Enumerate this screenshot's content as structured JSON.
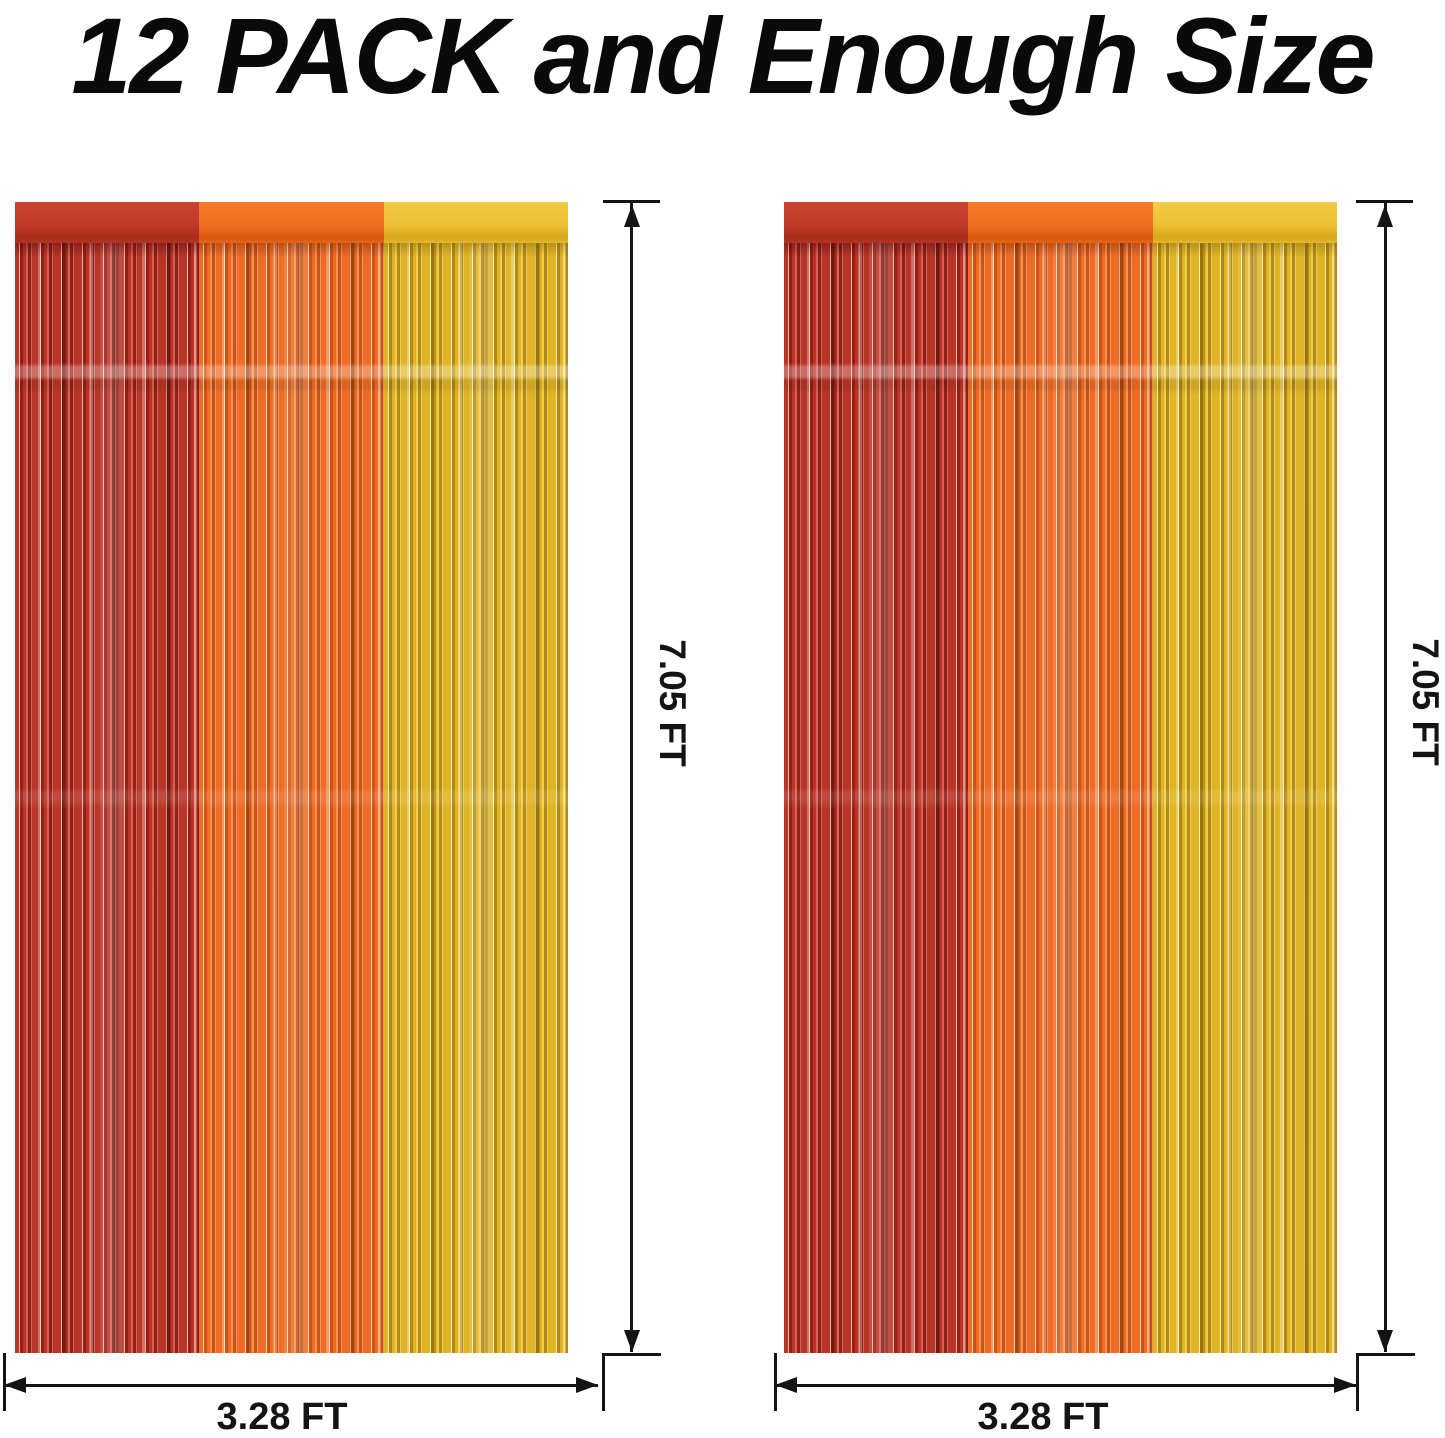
{
  "title": "12 PACK and Enough Size",
  "curtains": [
    {
      "name": "curtain-1",
      "height_label": "7.05 FT",
      "width_label": "3.28 FT",
      "sections": [
        "red",
        "orange",
        "yellow"
      ]
    },
    {
      "name": "curtain-2",
      "height_label": "7.05 FT",
      "width_label": "3.28 FT",
      "sections": [
        "red",
        "orange",
        "yellow"
      ]
    }
  ],
  "colors": {
    "red_band": "#c23a28",
    "orange_band": "#f26d1f",
    "yellow_band": "#eec033",
    "red_fringe": "#b93527",
    "orange_fringe": "#ee6c26",
    "yellow_fringe": "#e0b424",
    "annotation": "#141414",
    "title_color": "#0a0a0a",
    "background": "#ffffff"
  }
}
